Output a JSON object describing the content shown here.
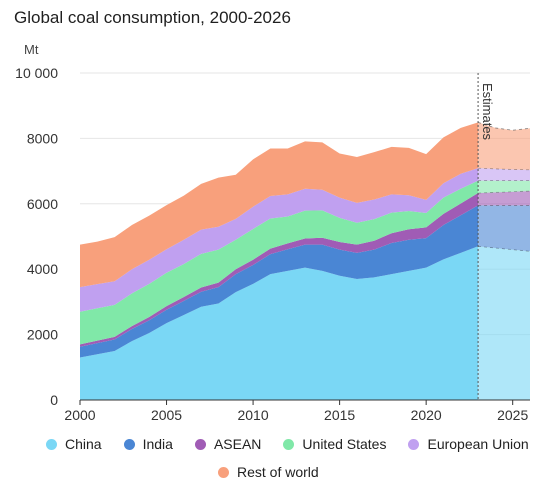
{
  "chart_data": {
    "type": "area",
    "stacked": true,
    "title": "Global coal consumption, 2000-2026",
    "y_unit": "Mt",
    "ylim": [
      0,
      10000
    ],
    "y_ticks": [
      0,
      2000,
      4000,
      6000,
      8000,
      10000
    ],
    "y_tick_labels": [
      "0",
      "2000",
      "4000",
      "6000",
      "8000",
      "10 000"
    ],
    "xlim": [
      2000,
      2026
    ],
    "x_ticks": [
      2000,
      2005,
      2010,
      2015,
      2020,
      2025
    ],
    "x_tick_labels": [
      "2000",
      "2005",
      "2010",
      "2015",
      "2020",
      "2025"
    ],
    "grid": true,
    "estimates_from": 2023,
    "estimates_label": "Estimates",
    "legend_position": "bottom",
    "x": [
      2000,
      2001,
      2002,
      2003,
      2004,
      2005,
      2006,
      2007,
      2008,
      2009,
      2010,
      2011,
      2012,
      2013,
      2014,
      2015,
      2016,
      2017,
      2018,
      2019,
      2020,
      2021,
      2022,
      2023,
      2024,
      2025,
      2026
    ],
    "series": [
      {
        "name": "China",
        "color": "#7ad7f5",
        "values": [
          1300,
          1400,
          1500,
          1800,
          2050,
          2350,
          2600,
          2850,
          2950,
          3300,
          3550,
          3850,
          3950,
          4050,
          3950,
          3800,
          3700,
          3750,
          3850,
          3950,
          4050,
          4300,
          4500,
          4700,
          4650,
          4600,
          4550
        ]
      },
      {
        "name": "India",
        "color": "#4a86d4",
        "values": [
          330,
          340,
          350,
          370,
          390,
          410,
          430,
          460,
          500,
          550,
          580,
          610,
          660,
          700,
          800,
          800,
          800,
          850,
          950,
          950,
          900,
          1050,
          1150,
          1250,
          1300,
          1350,
          1400
        ]
      },
      {
        "name": "ASEAN",
        "color": "#a05cb5",
        "values": [
          70,
          75,
          80,
          90,
          100,
          110,
          120,
          130,
          140,
          150,
          160,
          170,
          180,
          190,
          210,
          230,
          250,
          270,
          300,
          320,
          330,
          340,
          360,
          380,
          400,
          420,
          440
        ]
      },
      {
        "name": "United States",
        "color": "#80e8a8",
        "values": [
          1000,
          990,
          980,
          1000,
          1010,
          1020,
          1010,
          1030,
          1010,
          900,
          940,
          920,
          820,
          850,
          840,
          740,
          670,
          660,
          630,
          560,
          440,
          500,
          450,
          380,
          360,
          340,
          320
        ]
      },
      {
        "name": "European Union",
        "color": "#c0a0f0",
        "values": [
          750,
          740,
          720,
          740,
          740,
          720,
          740,
          740,
          700,
          640,
          680,
          690,
          680,
          670,
          630,
          620,
          610,
          600,
          560,
          480,
          400,
          440,
          460,
          380,
          360,
          340,
          330
        ]
      },
      {
        "name": "Rest of world",
        "color": "#f8a07c",
        "values": [
          1300,
          1300,
          1350,
          1350,
          1350,
          1350,
          1350,
          1400,
          1500,
          1350,
          1450,
          1450,
          1400,
          1450,
          1450,
          1350,
          1400,
          1450,
          1450,
          1450,
          1400,
          1400,
          1400,
          1400,
          1250,
          1200,
          1270
        ]
      }
    ]
  }
}
